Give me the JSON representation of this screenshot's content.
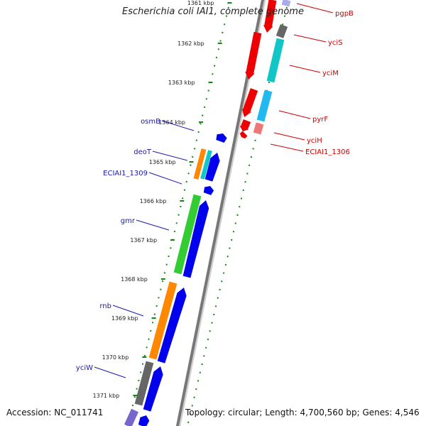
{
  "title": "Escherichia coli IAI1, complete genome",
  "footer": {
    "accession": "Accession: NC_011741",
    "summary": "Topology: circular; Length: 4,700,560 bp; Genes: 4,546"
  },
  "colors": {
    "forward": "#0000ee",
    "reverse": "#ee0000",
    "cyan": "#11c6c6",
    "sky": "#22b8f0",
    "salmon": "#ee7777",
    "gray": "#666666",
    "orange": "#ff8800",
    "green": "#33cc33",
    "purple": "#7766cc",
    "lavender": "#aaaaee",
    "leftLabel": "#1a1aaa",
    "rightLabel": "#cc0000",
    "tick": "#118811"
  },
  "ticks": [
    "1361 kbp",
    "1362 kbp",
    "1363 kbp",
    "1364 kbp",
    "1365 kbp",
    "1366 kbp",
    "1367 kbp",
    "1368 kbp",
    "1369 kbp",
    "1370 kbp",
    "1371 kbp"
  ],
  "genes_left": [
    "osmB",
    "deoT",
    "ECIAI1_1309",
    "gmr",
    "rnb",
    "yciW"
  ],
  "genes_right": [
    "pgpB",
    "yciS",
    "yciM",
    "pyrF",
    "yciH",
    "ECIAI1_1306"
  ]
}
